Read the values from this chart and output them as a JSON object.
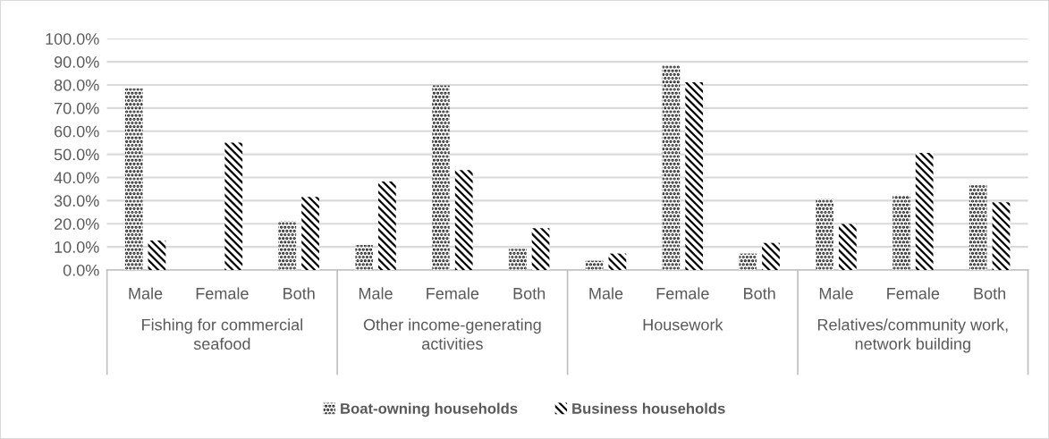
{
  "chart_data": {
    "type": "bar",
    "categories": [
      "Male",
      "Female",
      "Both",
      "Male",
      "Female",
      "Both",
      "Male",
      "Female",
      "Both",
      "Male",
      "Female",
      "Both"
    ],
    "series": [
      {
        "name": "Boat-owning households",
        "color": "#000000",
        "values": [
          78.5,
          0,
          21.2,
          10.8,
          79.8,
          9.1,
          4.0,
          88.6,
          7.1,
          30.8,
          32.1,
          36.6
        ]
      },
      {
        "name": "Business households",
        "color": "#000000",
        "values": [
          12.7,
          55.1,
          31.6,
          38.2,
          43.2,
          18.1,
          7.1,
          81.1,
          11.7,
          19.9,
          50.6,
          29.3
        ]
      }
    ],
    "annotations": [
      "Fishing for commercial seafood",
      "Other income-generating activities",
      "Housework",
      "Relatives/community work, network building"
    ],
    "ylim": [
      0,
      100
    ],
    "yticks": [
      {
        "value": 0,
        "label": "0.0%"
      },
      {
        "value": 10,
        "label": "10.0%"
      },
      {
        "value": 20,
        "label": "20.0%"
      },
      {
        "value": 30,
        "label": "30.0%"
      },
      {
        "value": 40,
        "label": "40.0%"
      },
      {
        "value": 50,
        "label": "50.0%"
      },
      {
        "value": 60,
        "label": "60.0%"
      },
      {
        "value": 70,
        "label": "70.0%"
      },
      {
        "value": 80,
        "label": "80.0%"
      },
      {
        "value": 90,
        "label": "90.0%"
      },
      {
        "value": 100,
        "label": "100.0%"
      }
    ],
    "grid": "y",
    "legend": "bottom"
  }
}
